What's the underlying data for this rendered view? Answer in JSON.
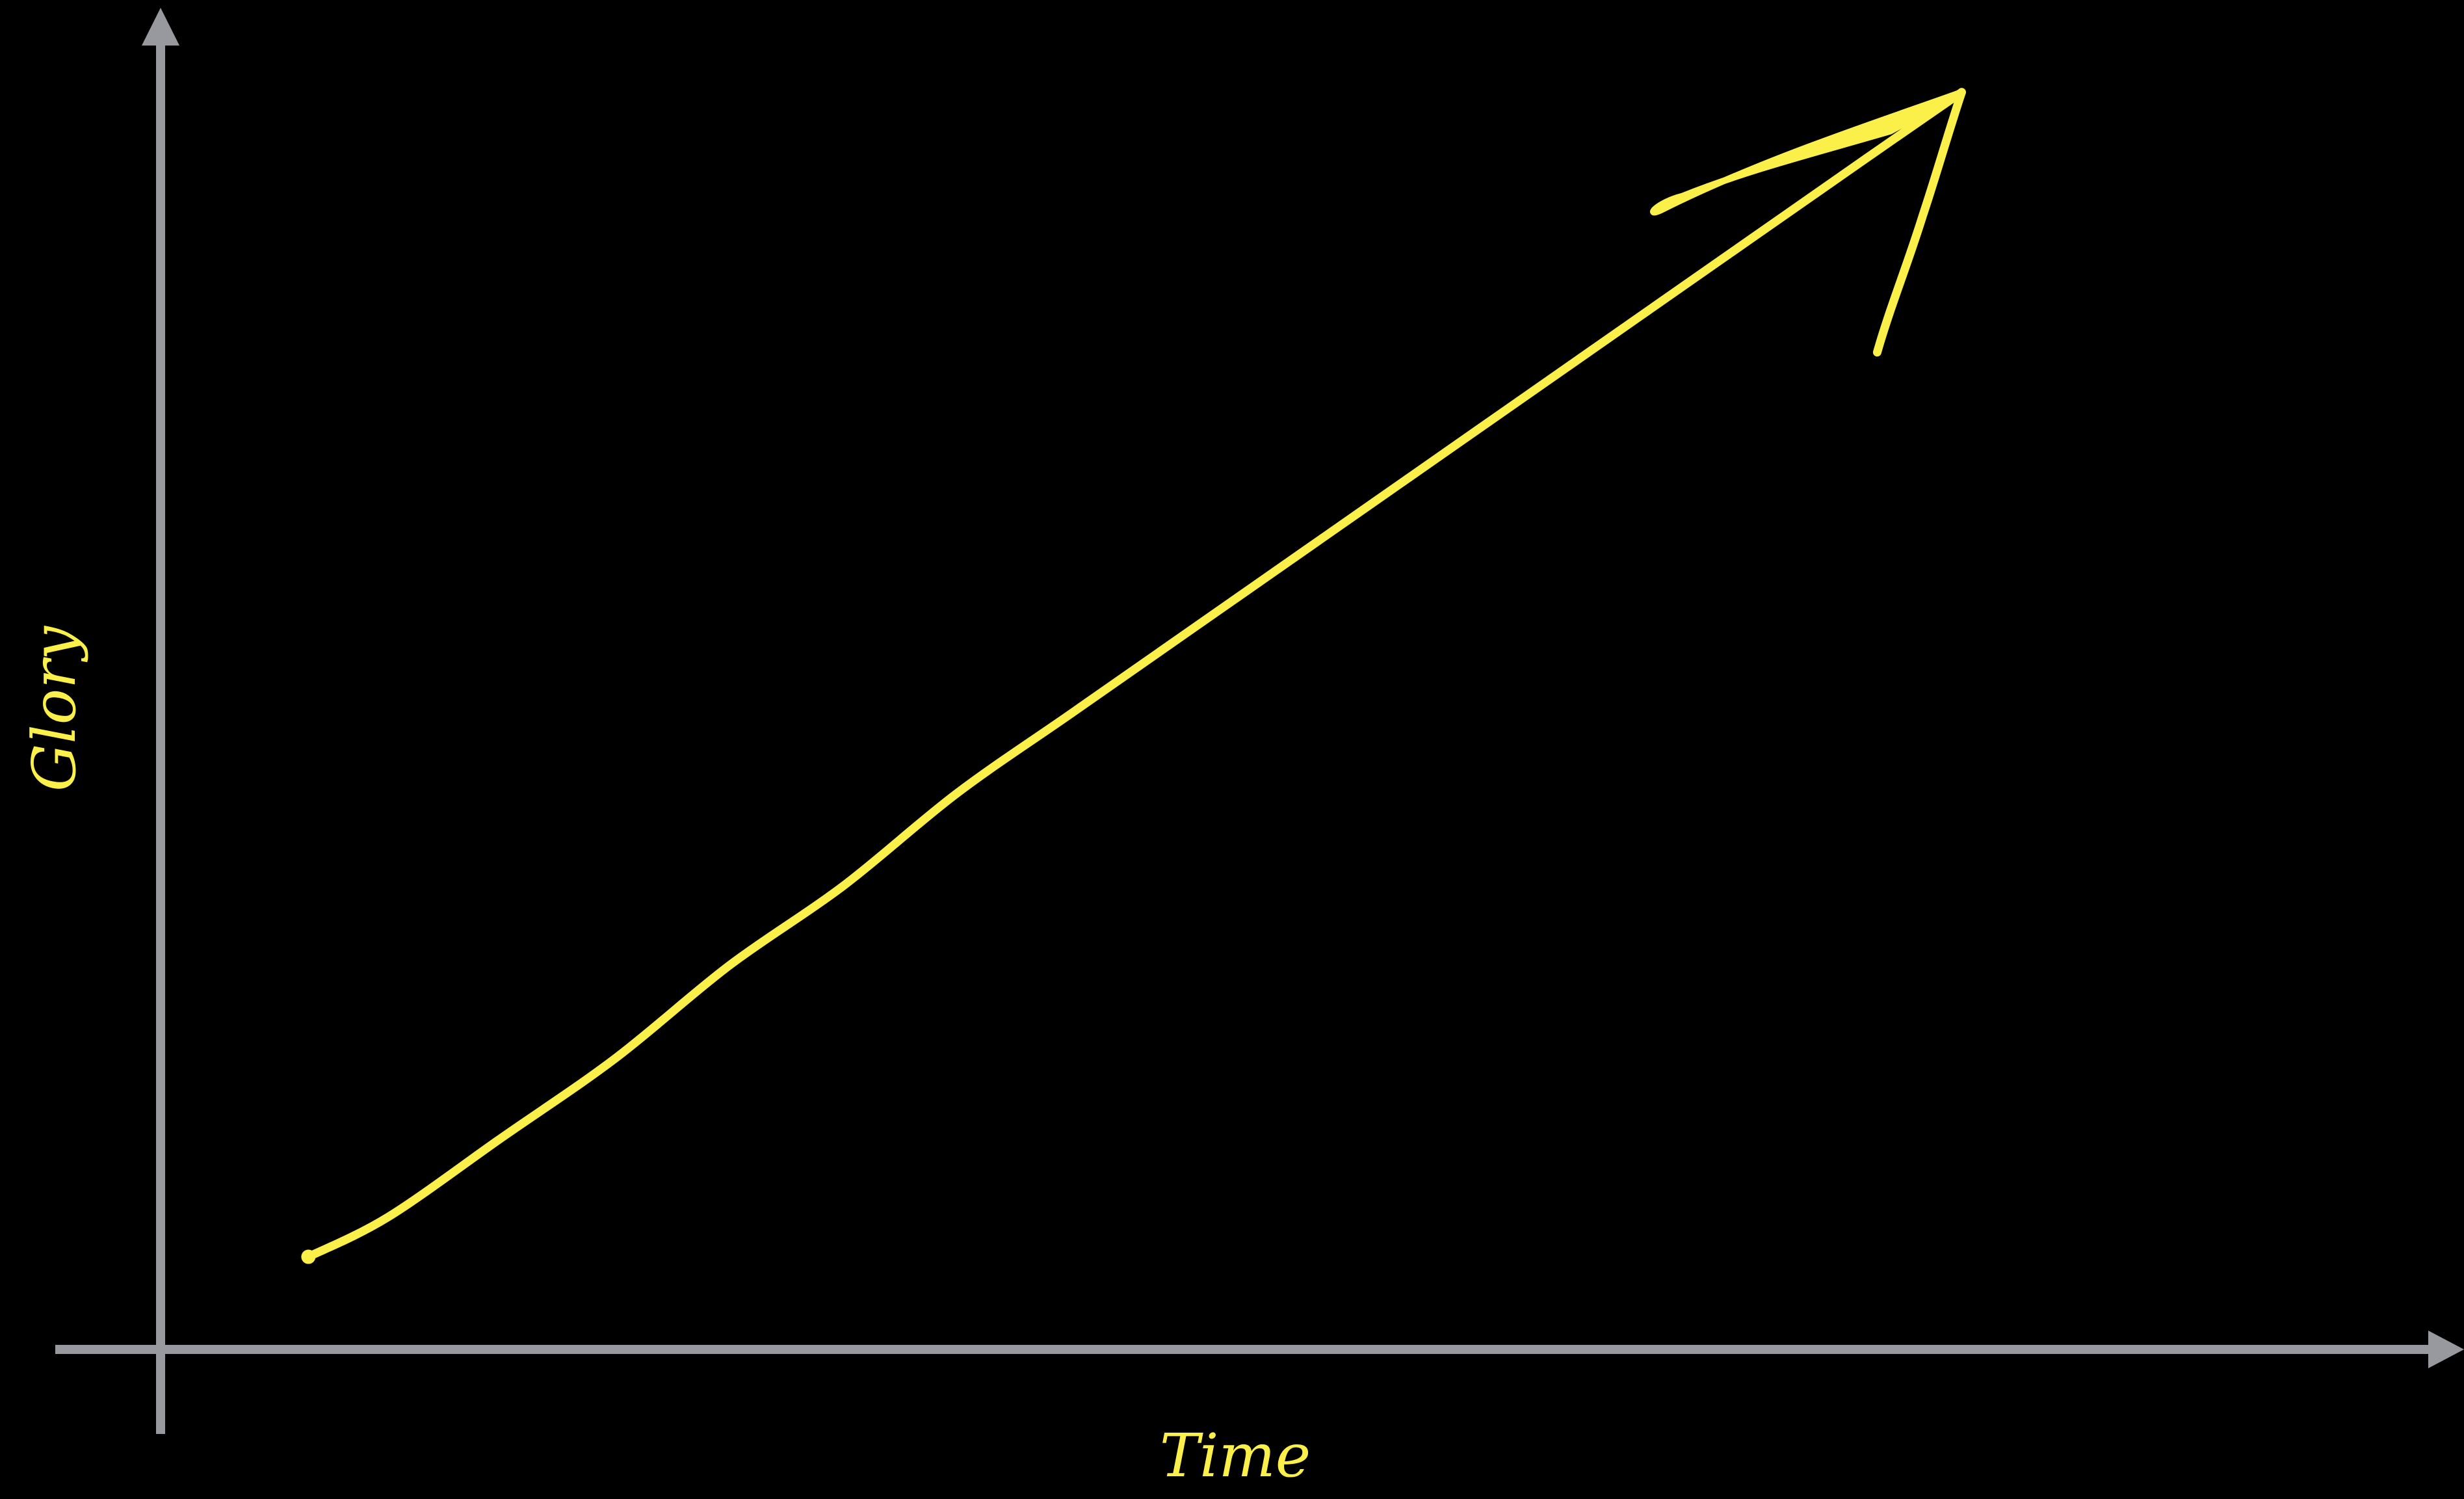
{
  "chart_data": {
    "type": "line",
    "title": "",
    "xlabel": "Time",
    "ylabel": "Glory",
    "xlim": [
      0,
      100
    ],
    "ylim": [
      0,
      100
    ],
    "grid": false,
    "legend": "none",
    "axis_ticks": false,
    "hand_drawn": true,
    "series": [
      {
        "x": [
          6.5,
          10,
          15,
          20,
          25,
          30,
          35,
          40,
          45,
          50,
          55,
          60,
          65,
          70,
          75,
          79.2
        ],
        "y": [
          7,
          10,
          16,
          22,
          29,
          35,
          42,
          48,
          54,
          60,
          66,
          72,
          78,
          84,
          90,
          95
        ],
        "end_marker": "arrow"
      }
    ]
  },
  "colors": {
    "background": "#000000",
    "axis": "#97999f",
    "line": "#fbef4a",
    "label": "#fbef4a"
  }
}
